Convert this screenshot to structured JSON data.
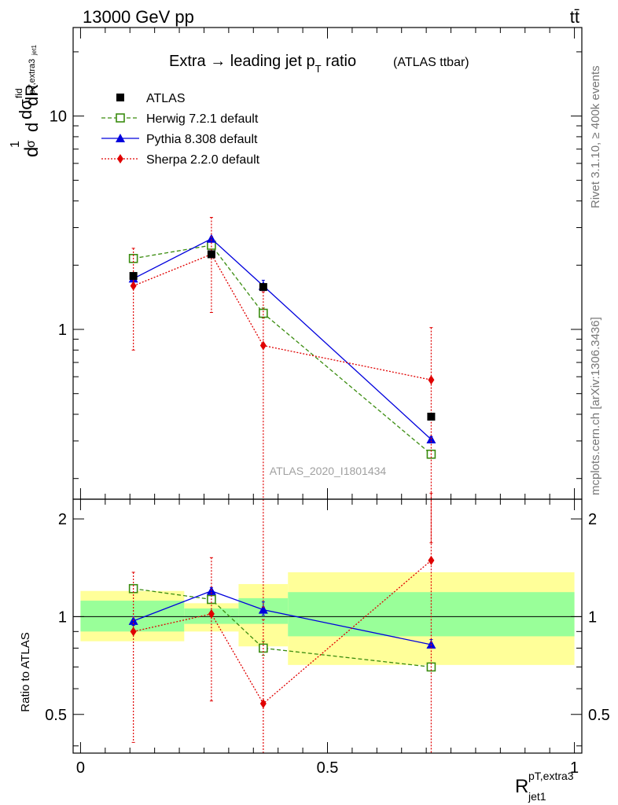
{
  "header": {
    "energy_label": "13000 GeV pp",
    "process_label": "tt̄"
  },
  "side_labels": {
    "rivet": "Rivet 3.1.10, ≥ 400k events",
    "mcplots": "mcplots.cern.ch [arXiv:1306.3436]"
  },
  "chart_data": {
    "type": "scatter",
    "title_main": "Extra → leading jet p",
    "title_sub": "T",
    "title_tail": " ratio",
    "title_note": "(ATLAS ttbar)",
    "analysis_label": "ATLAS_2020_I1801434",
    "y_label_main": "dσ/dR normalized",
    "y_label_display": "d1σdσfidpT,extra3jet1dR",
    "x_label_main": "R",
    "x_label_sup": "pT,extra3",
    "x_label_sub": "jet1",
    "ratio_label": "Ratio to ATLAS",
    "xlim": [
      -0.015,
      1.015
    ],
    "ylim_top": [
      0.16,
      26
    ],
    "ylim_ratio": [
      0.38,
      2.3
    ],
    "y_log": true,
    "x_ticks": [
      {
        "value": 0,
        "label": "0"
      },
      {
        "value": 0.5,
        "label": "0.5"
      },
      {
        "value": 1,
        "label": "1"
      }
    ],
    "y_ticks_top": [
      {
        "value": 1,
        "label": "1"
      },
      {
        "value": 10,
        "label": "10"
      }
    ],
    "y_ticks_ratio": [
      {
        "value": 0.5,
        "label": "0.5"
      },
      {
        "value": 1,
        "label": "1"
      },
      {
        "value": 2,
        "label": "2"
      }
    ],
    "bins": [
      {
        "lo": 0.0,
        "hi": 0.21,
        "center": 0.107
      },
      {
        "lo": 0.21,
        "hi": 0.32,
        "center": 0.265
      },
      {
        "lo": 0.32,
        "hi": 0.42,
        "center": 0.37
      },
      {
        "lo": 0.42,
        "hi": 1.0,
        "center": 0.71
      }
    ],
    "data_band": {
      "inner": [
        [
          0.9,
          1.12
        ],
        [
          0.95,
          1.06
        ],
        [
          0.95,
          1.14
        ],
        [
          0.87,
          1.19
        ]
      ],
      "outer": [
        [
          0.84,
          1.2
        ],
        [
          0.9,
          1.1
        ],
        [
          0.81,
          1.26
        ],
        [
          0.71,
          1.37
        ]
      ]
    },
    "series": [
      {
        "name": "ATLAS",
        "color": "#000000",
        "marker": "square",
        "line": "none",
        "x": [
          0.107,
          0.265,
          0.37,
          0.71
        ],
        "y": [
          1.78,
          2.25,
          1.58,
          0.39
        ],
        "ratio": [
          1,
          1,
          1,
          1
        ],
        "ratio_err": [
          [
            0,
            0
          ],
          [
            0,
            0
          ],
          [
            0,
            0
          ],
          [
            0,
            0
          ]
        ]
      },
      {
        "name": "Herwig 7.2.1 default",
        "color": "#3a8c0f",
        "marker": "open-square",
        "line": "dashed",
        "x": [
          0.107,
          0.265,
          0.37,
          0.71
        ],
        "y": [
          2.15,
          2.48,
          1.19,
          0.26
        ],
        "y_err": [
          [
            2.1,
            2.2
          ],
          [
            2.4,
            2.56
          ],
          [
            1.13,
            1.26
          ],
          [
            0.25,
            0.27
          ]
        ],
        "ratio": [
          1.22,
          1.13,
          0.8,
          0.7
        ],
        "ratio_err": [
          [
            1.19,
            1.25
          ],
          [
            1.1,
            1.16
          ],
          [
            0.76,
            0.84
          ],
          [
            0.68,
            0.72
          ]
        ]
      },
      {
        "name": "Pythia 8.308 default",
        "color": "#0000dd",
        "marker": "triangle",
        "line": "solid",
        "x": [
          0.107,
          0.265,
          0.37,
          0.71
        ],
        "y": [
          1.73,
          2.66,
          1.6,
          0.305
        ],
        "y_err": [
          [
            1.68,
            1.78
          ],
          [
            2.6,
            2.72
          ],
          [
            1.52,
            1.7
          ],
          [
            0.295,
            0.315
          ]
        ],
        "ratio": [
          0.97,
          1.2,
          1.05,
          0.82
        ],
        "ratio_err": [
          [
            0.94,
            1.0
          ],
          [
            1.17,
            1.23
          ],
          [
            1.01,
            1.11
          ],
          [
            0.8,
            0.85
          ]
        ]
      },
      {
        "name": "Sherpa 2.2.0 default",
        "color": "#e00000",
        "marker": "diamond",
        "line": "dotted",
        "x": [
          0.107,
          0.265,
          0.37,
          0.71
        ],
        "y": [
          1.6,
          2.25,
          0.84,
          0.58
        ],
        "y_err": [
          [
            0.8,
            2.4
          ],
          [
            1.2,
            3.35
          ],
          [
            0.05,
            1.5
          ],
          [
            0.1,
            1.02
          ]
        ],
        "ratio": [
          0.9,
          1.02,
          0.54,
          1.49
        ],
        "ratio_err": [
          [
            0.41,
            1.37
          ],
          [
            0.55,
            1.52
          ],
          [
            0.05,
            0.98
          ],
          [
            0.2,
            2.4
          ]
        ]
      }
    ],
    "band_colors": {
      "inner": "#99ff99",
      "outer": "#ffff99"
    }
  }
}
